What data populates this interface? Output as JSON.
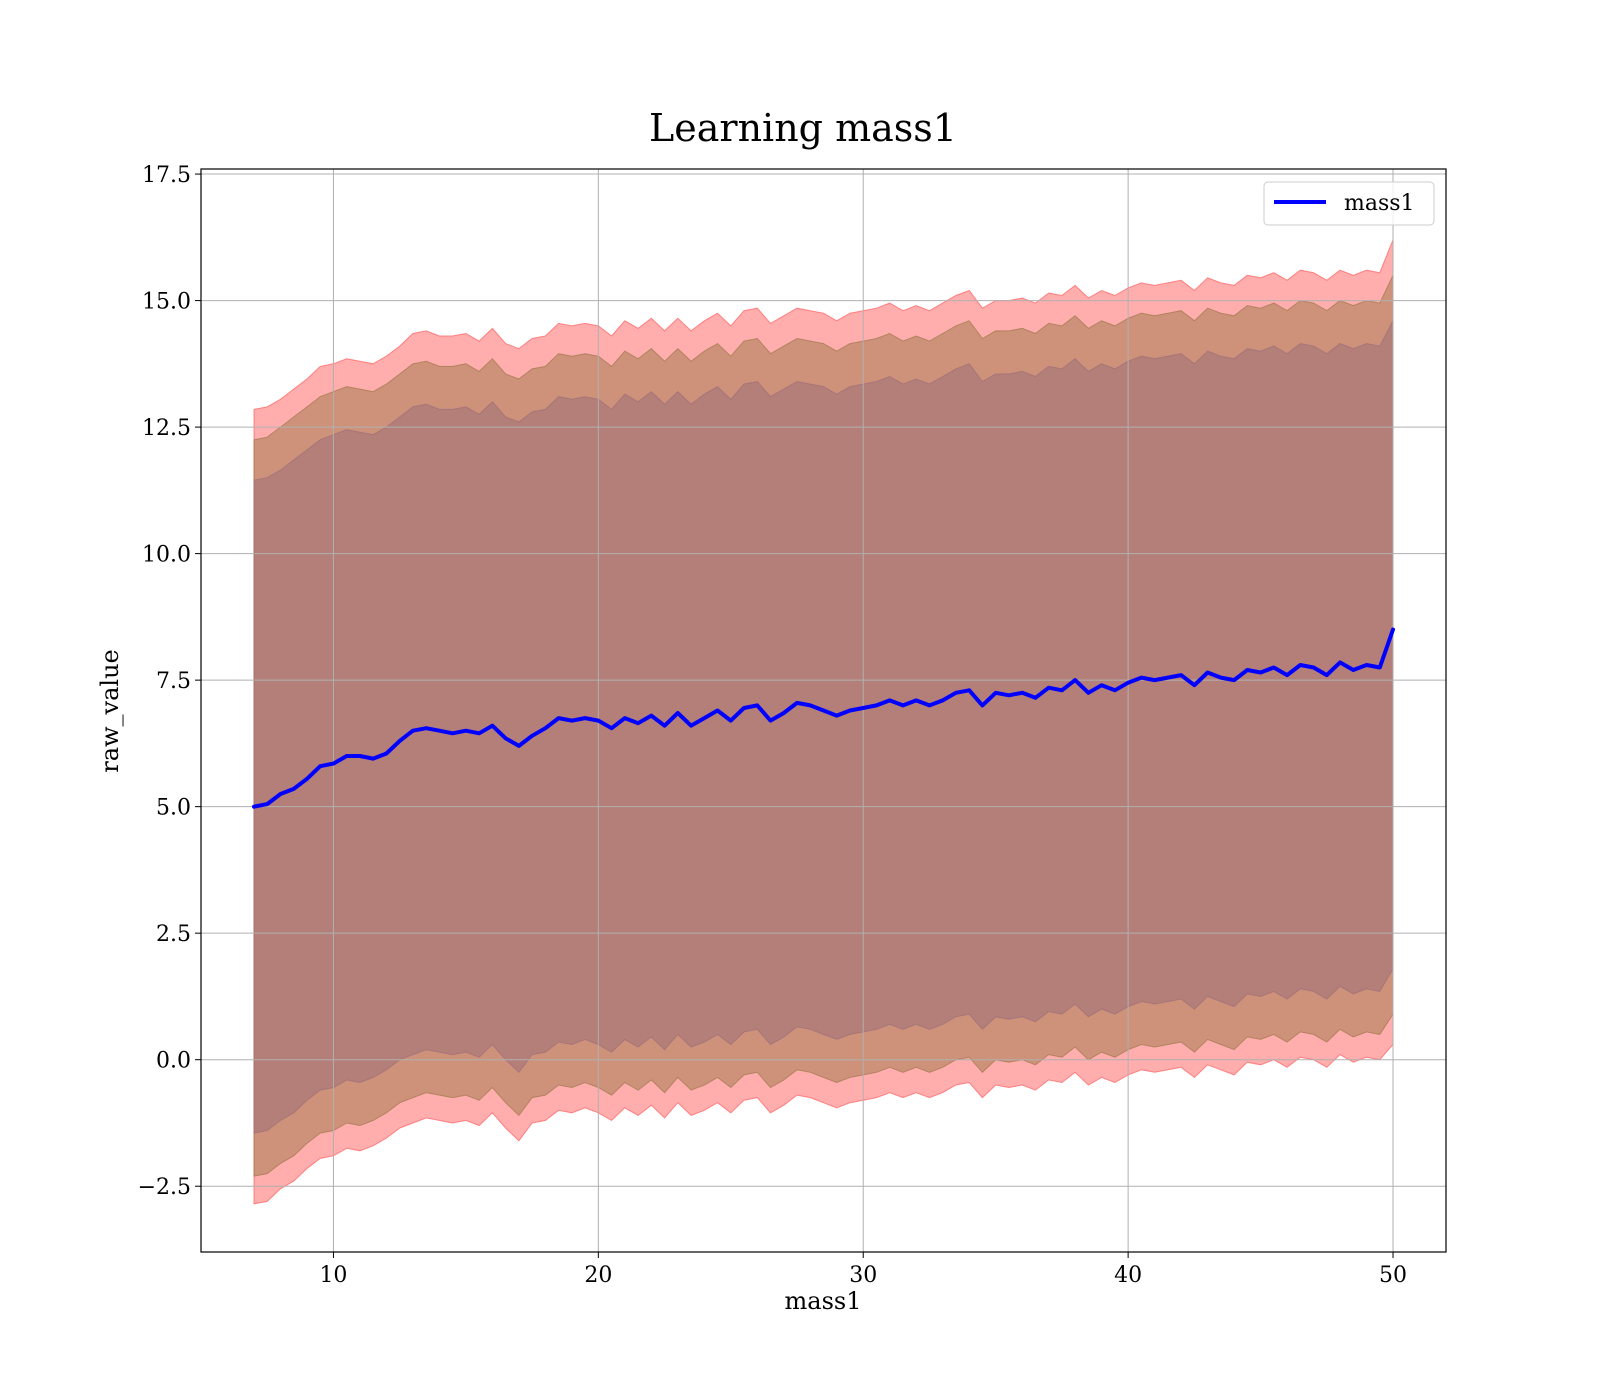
{
  "chart_data": {
    "type": "line",
    "title": "Learning mass1",
    "xlabel": "mass1",
    "ylabel": "raw_value",
    "xlim": [
      5,
      52
    ],
    "ylim": [
      -3.8,
      17.6
    ],
    "xticks": [
      10,
      20,
      30,
      40,
      50
    ],
    "xtick_labels": [
      "10",
      "20",
      "30",
      "40",
      "50"
    ],
    "yticks": [
      -2.5,
      0.0,
      2.5,
      5.0,
      7.5,
      10.0,
      12.5,
      15.0,
      17.5
    ],
    "ytick_labels": [
      "−2.5",
      "0.0",
      "2.5",
      "5.0",
      "7.5",
      "10.0",
      "12.5",
      "15.0",
      "17.5"
    ],
    "grid": true,
    "legend": {
      "position": "top-right",
      "entries": [
        "mass1"
      ]
    },
    "x": [
      7.0,
      7.5,
      8.0,
      8.5,
      9.0,
      9.5,
      10.0,
      10.5,
      11.0,
      11.5,
      12.0,
      12.5,
      13.0,
      13.5,
      14.0,
      14.5,
      15.0,
      15.5,
      16.0,
      16.5,
      17.0,
      17.5,
      18.0,
      18.5,
      19.0,
      19.5,
      20.0,
      20.5,
      21.0,
      21.5,
      22.0,
      22.5,
      23.0,
      23.5,
      24.0,
      24.5,
      25.0,
      25.5,
      26.0,
      26.5,
      27.0,
      27.5,
      28.0,
      28.5,
      29.0,
      29.5,
      30.0,
      30.5,
      31.0,
      31.5,
      32.0,
      32.5,
      33.0,
      33.5,
      34.0,
      34.5,
      35.0,
      35.5,
      36.0,
      36.5,
      37.0,
      37.5,
      38.0,
      38.5,
      39.0,
      39.5,
      40.0,
      40.5,
      41.0,
      41.5,
      42.0,
      42.5,
      43.0,
      43.5,
      44.0,
      44.5,
      45.0,
      45.5,
      46.0,
      46.5,
      47.0,
      47.5,
      48.0,
      48.5,
      49.0,
      49.5,
      50.0
    ],
    "series": [
      {
        "name": "mass1",
        "type": "line",
        "color": "#0000ff",
        "values": [
          5.0,
          5.05,
          5.25,
          5.35,
          5.55,
          5.8,
          5.85,
          6.0,
          6.0,
          5.95,
          6.05,
          6.3,
          6.5,
          6.55,
          6.5,
          6.45,
          6.5,
          6.45,
          6.6,
          6.35,
          6.2,
          6.4,
          6.55,
          6.75,
          6.7,
          6.75,
          6.7,
          6.55,
          6.75,
          6.65,
          6.8,
          6.6,
          6.85,
          6.6,
          6.75,
          6.9,
          6.7,
          6.95,
          7.0,
          6.7,
          6.85,
          7.05,
          7.0,
          6.9,
          6.8,
          6.9,
          6.95,
          7.0,
          7.1,
          7.0,
          7.1,
          7.0,
          7.1,
          7.25,
          7.3,
          7.0,
          7.25,
          7.2,
          7.25,
          7.15,
          7.35,
          7.3,
          7.5,
          7.25,
          7.4,
          7.3,
          7.45,
          7.55,
          7.5,
          7.55,
          7.6,
          7.4,
          7.65,
          7.55,
          7.5,
          7.7,
          7.65,
          7.75,
          7.6,
          7.8,
          7.75,
          7.6,
          7.85,
          7.7,
          7.8,
          7.75,
          8.5
        ]
      },
      {
        "type": "band",
        "color": "#ff6a6a",
        "lower": [
          -2.85,
          -2.8,
          -2.55,
          -2.4,
          -2.15,
          -1.95,
          -1.9,
          -1.75,
          -1.8,
          -1.7,
          -1.55,
          -1.35,
          -1.25,
          -1.15,
          -1.2,
          -1.25,
          -1.2,
          -1.3,
          -1.05,
          -1.35,
          -1.6,
          -1.25,
          -1.2,
          -1.0,
          -1.05,
          -0.95,
          -1.05,
          -1.2,
          -0.95,
          -1.1,
          -0.9,
          -1.15,
          -0.85,
          -1.1,
          -1.0,
          -0.85,
          -1.05,
          -0.8,
          -0.75,
          -1.05,
          -0.9,
          -0.7,
          -0.75,
          -0.85,
          -0.95,
          -0.85,
          -0.8,
          -0.75,
          -0.65,
          -0.75,
          -0.65,
          -0.75,
          -0.65,
          -0.5,
          -0.45,
          -0.75,
          -0.5,
          -0.55,
          -0.5,
          -0.6,
          -0.4,
          -0.45,
          -0.25,
          -0.5,
          -0.35,
          -0.45,
          -0.3,
          -0.2,
          -0.25,
          -0.2,
          -0.15,
          -0.35,
          -0.1,
          -0.2,
          -0.3,
          -0.05,
          -0.1,
          0.0,
          -0.15,
          0.05,
          0.0,
          -0.15,
          0.1,
          -0.05,
          0.05,
          0.0,
          0.3
        ],
        "upper": [
          12.85,
          12.9,
          13.05,
          13.25,
          13.45,
          13.7,
          13.75,
          13.85,
          13.8,
          13.75,
          13.9,
          14.1,
          14.35,
          14.4,
          14.3,
          14.3,
          14.35,
          14.2,
          14.45,
          14.15,
          14.05,
          14.25,
          14.3,
          14.55,
          14.5,
          14.55,
          14.5,
          14.3,
          14.6,
          14.45,
          14.65,
          14.4,
          14.65,
          14.4,
          14.6,
          14.75,
          14.5,
          14.8,
          14.85,
          14.55,
          14.7,
          14.85,
          14.8,
          14.75,
          14.6,
          14.75,
          14.8,
          14.85,
          14.95,
          14.8,
          14.9,
          14.8,
          14.95,
          15.1,
          15.2,
          14.85,
          15.0,
          15.0,
          15.05,
          14.95,
          15.15,
          15.1,
          15.3,
          15.05,
          15.2,
          15.1,
          15.25,
          15.35,
          15.3,
          15.35,
          15.4,
          15.2,
          15.45,
          15.35,
          15.3,
          15.5,
          15.45,
          15.55,
          15.4,
          15.6,
          15.55,
          15.4,
          15.6,
          15.5,
          15.6,
          15.55,
          16.2
        ]
      },
      {
        "type": "band",
        "color": "#a67c52",
        "lower": [
          -2.3,
          -2.25,
          -2.05,
          -1.9,
          -1.65,
          -1.45,
          -1.4,
          -1.25,
          -1.3,
          -1.2,
          -1.05,
          -0.85,
          -0.75,
          -0.65,
          -0.7,
          -0.75,
          -0.7,
          -0.8,
          -0.55,
          -0.85,
          -1.1,
          -0.75,
          -0.7,
          -0.5,
          -0.55,
          -0.45,
          -0.55,
          -0.7,
          -0.45,
          -0.6,
          -0.4,
          -0.65,
          -0.35,
          -0.6,
          -0.5,
          -0.35,
          -0.55,
          -0.3,
          -0.25,
          -0.55,
          -0.4,
          -0.2,
          -0.25,
          -0.35,
          -0.45,
          -0.35,
          -0.3,
          -0.25,
          -0.15,
          -0.25,
          -0.15,
          -0.25,
          -0.15,
          0.0,
          0.05,
          -0.25,
          0.0,
          -0.05,
          0.0,
          -0.1,
          0.1,
          0.05,
          0.25,
          0.0,
          0.15,
          0.05,
          0.2,
          0.3,
          0.25,
          0.3,
          0.35,
          0.15,
          0.4,
          0.3,
          0.2,
          0.45,
          0.4,
          0.5,
          0.35,
          0.55,
          0.5,
          0.35,
          0.6,
          0.45,
          0.55,
          0.5,
          0.9
        ],
        "upper": [
          12.25,
          12.3,
          12.5,
          12.7,
          12.9,
          13.1,
          13.2,
          13.3,
          13.25,
          13.2,
          13.35,
          13.55,
          13.75,
          13.8,
          13.7,
          13.7,
          13.75,
          13.6,
          13.85,
          13.55,
          13.45,
          13.65,
          13.7,
          13.95,
          13.9,
          13.95,
          13.9,
          13.7,
          14.0,
          13.85,
          14.05,
          13.8,
          14.05,
          13.8,
          14.0,
          14.15,
          13.9,
          14.2,
          14.25,
          13.95,
          14.1,
          14.25,
          14.2,
          14.15,
          14.0,
          14.15,
          14.2,
          14.25,
          14.35,
          14.2,
          14.3,
          14.2,
          14.35,
          14.5,
          14.6,
          14.25,
          14.4,
          14.4,
          14.45,
          14.35,
          14.55,
          14.5,
          14.7,
          14.45,
          14.6,
          14.5,
          14.65,
          14.75,
          14.7,
          14.75,
          14.8,
          14.6,
          14.85,
          14.75,
          14.7,
          14.9,
          14.85,
          14.95,
          14.8,
          15.0,
          14.95,
          14.8,
          15.0,
          14.9,
          15.0,
          14.95,
          15.5
        ]
      },
      {
        "type": "band",
        "color": "#a07078",
        "lower": [
          -1.45,
          -1.4,
          -1.2,
          -1.05,
          -0.8,
          -0.6,
          -0.55,
          -0.4,
          -0.45,
          -0.35,
          -0.2,
          0.0,
          0.1,
          0.2,
          0.15,
          0.1,
          0.15,
          0.05,
          0.3,
          0.0,
          -0.25,
          0.1,
          0.15,
          0.35,
          0.3,
          0.4,
          0.3,
          0.15,
          0.4,
          0.25,
          0.45,
          0.2,
          0.5,
          0.25,
          0.35,
          0.5,
          0.3,
          0.55,
          0.6,
          0.3,
          0.45,
          0.65,
          0.6,
          0.5,
          0.4,
          0.5,
          0.55,
          0.6,
          0.7,
          0.6,
          0.7,
          0.6,
          0.7,
          0.85,
          0.9,
          0.6,
          0.85,
          0.8,
          0.85,
          0.75,
          0.95,
          0.9,
          1.1,
          0.85,
          1.0,
          0.9,
          1.05,
          1.15,
          1.1,
          1.15,
          1.2,
          1.0,
          1.25,
          1.15,
          1.05,
          1.3,
          1.25,
          1.35,
          1.2,
          1.4,
          1.35,
          1.2,
          1.45,
          1.3,
          1.4,
          1.35,
          1.8
        ],
        "upper": [
          11.45,
          11.5,
          11.65,
          11.85,
          12.05,
          12.25,
          12.35,
          12.45,
          12.4,
          12.35,
          12.5,
          12.7,
          12.9,
          12.95,
          12.85,
          12.85,
          12.9,
          12.75,
          13.0,
          12.7,
          12.6,
          12.8,
          12.85,
          13.1,
          13.05,
          13.1,
          13.05,
          12.85,
          13.15,
          13.0,
          13.2,
          12.95,
          13.2,
          12.95,
          13.15,
          13.3,
          13.05,
          13.35,
          13.4,
          13.1,
          13.25,
          13.4,
          13.35,
          13.3,
          13.15,
          13.3,
          13.35,
          13.4,
          13.5,
          13.35,
          13.45,
          13.35,
          13.5,
          13.65,
          13.75,
          13.4,
          13.55,
          13.55,
          13.6,
          13.5,
          13.7,
          13.65,
          13.85,
          13.6,
          13.75,
          13.65,
          13.8,
          13.9,
          13.85,
          13.9,
          13.95,
          13.75,
          14.0,
          13.9,
          13.85,
          14.05,
          14.0,
          14.1,
          13.95,
          14.15,
          14.1,
          13.95,
          14.15,
          14.05,
          14.15,
          14.1,
          14.6
        ]
      }
    ]
  }
}
